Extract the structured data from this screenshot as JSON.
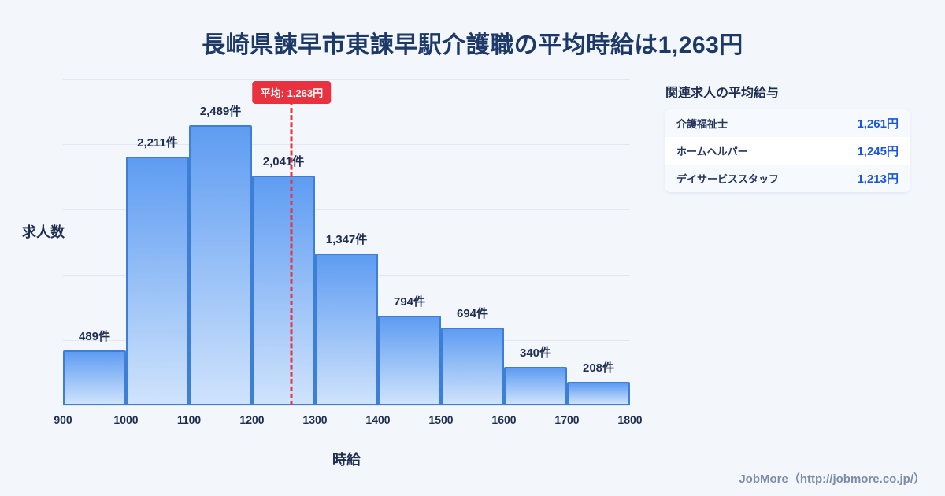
{
  "page": {
    "title": "長崎県諫早市東諫早駅介護職の平均時給は1,263円",
    "footer": "JobMore（http://jobmore.co.jp/）"
  },
  "chart_data": {
    "type": "bar",
    "title": "長崎県諫早市東諫早駅介護職の平均時給は1,263円",
    "xlabel": "時給",
    "ylabel": "求人数",
    "bin_edges": [
      900,
      1000,
      1100,
      1200,
      1300,
      1400,
      1500,
      1600,
      1700,
      1800
    ],
    "values": [
      489,
      2211,
      2489,
      2041,
      1347,
      794,
      694,
      340,
      208
    ],
    "value_labels": [
      "489件",
      "2,211件",
      "2,489件",
      "2,041件",
      "1,347件",
      "794件",
      "694件",
      "340件",
      "208件"
    ],
    "mean": 1263,
    "mean_label": "平均: 1,263円",
    "ylim": [
      0,
      2900
    ],
    "grid": true,
    "legend": "none",
    "colors": {
      "bar_top": "#5e9cf2",
      "bar_bottom": "#cfe3fc",
      "bar_border": "#3e7fd6",
      "mean_line": "#e8323f",
      "grid_line": "#e2e8f1"
    }
  },
  "side_panel": {
    "title": "関連求人の平均給与",
    "rows": [
      {
        "label": "介護福祉士",
        "value": "1,261円"
      },
      {
        "label": "ホームヘルパー",
        "value": "1,245円"
      },
      {
        "label": "デイサービススタッフ",
        "value": "1,213円"
      }
    ]
  }
}
